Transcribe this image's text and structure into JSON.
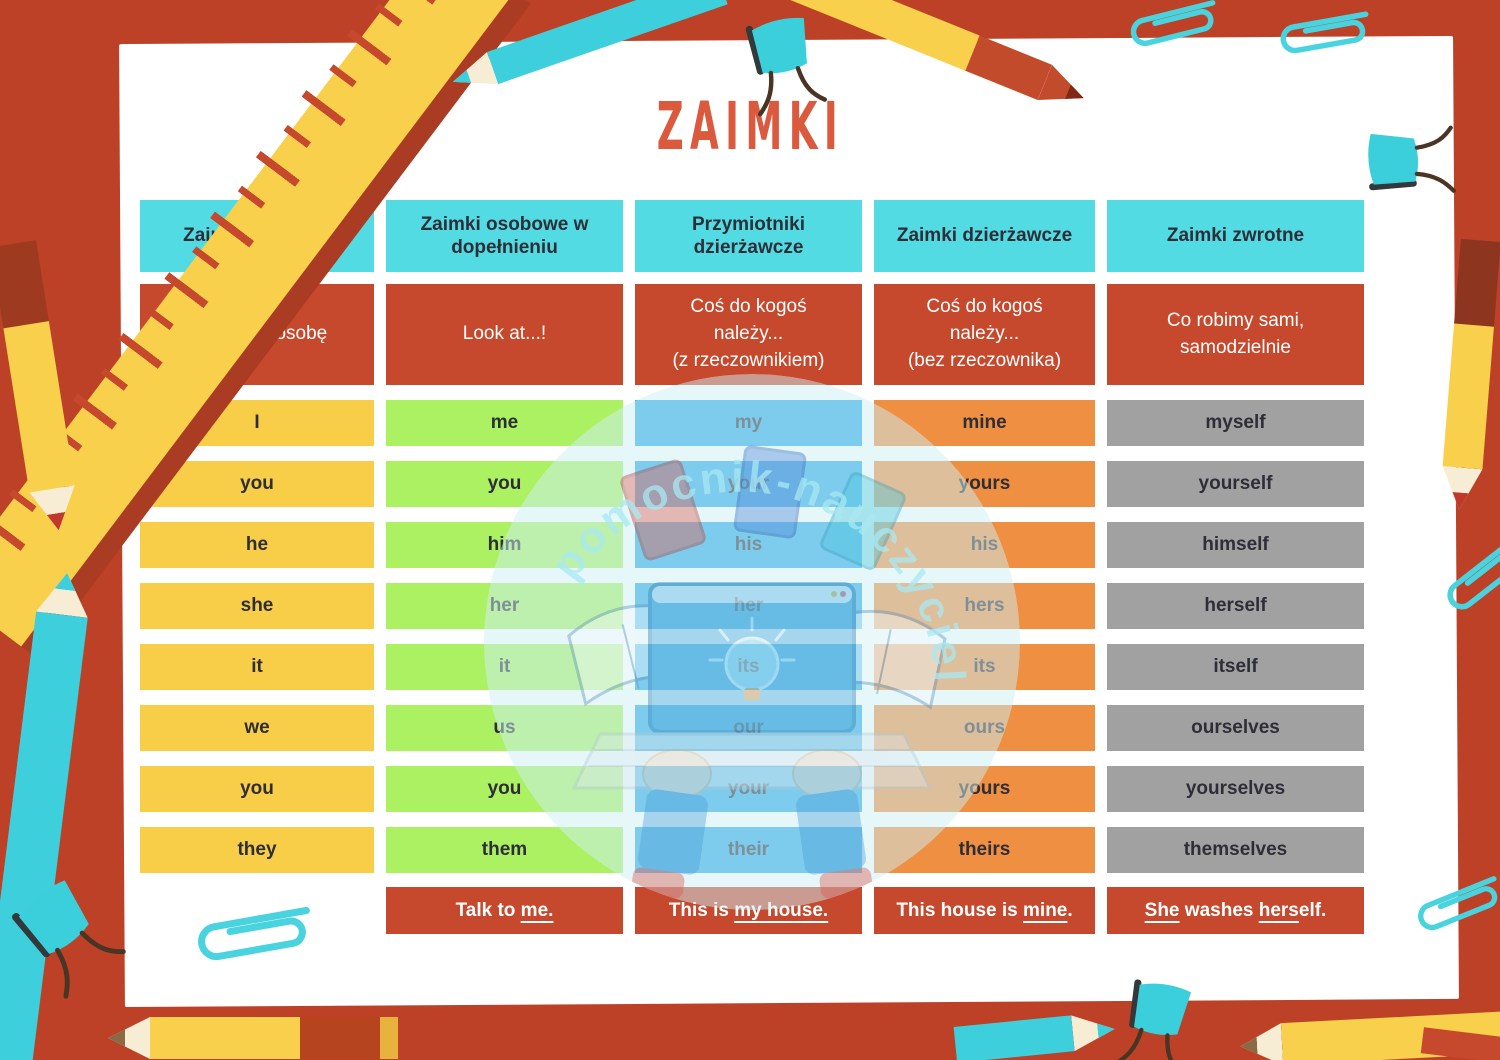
{
  "title": "ZAIMKI",
  "watermark": {
    "text": "pomocnik-nauczyciela"
  },
  "colors": {
    "frame_red": "#BC4127",
    "cell_red": "#C7492D",
    "header_cyan": "#52DBE3",
    "yellow": "#F8CE48",
    "green": "#ACF162",
    "blue": "#2CA8E6",
    "orange": "#EF8F41",
    "gray": "#A1A1A1",
    "dark_text": "#2E2E38",
    "title_red": "#DB5A3E"
  },
  "table": {
    "columns": [
      {
        "id": "personal",
        "header": "Zaimki osobowe",
        "description": "Zastępują osobę",
        "cell_color": "#F8CE48",
        "cells": [
          "I",
          "you",
          "he",
          "she",
          "it",
          "we",
          "you",
          "they"
        ],
        "example": null
      },
      {
        "id": "object",
        "header": "Zaimki osobowe w dopełnieniu",
        "description": "Look at...!",
        "cell_color": "#ACF162",
        "cells": [
          "me",
          "you",
          "him",
          "her",
          "it",
          "us",
          "you",
          "them"
        ],
        "example": [
          {
            "text": "Talk to ",
            "u": false
          },
          {
            "text": "me.",
            "u": true
          }
        ]
      },
      {
        "id": "possessive-adjectives",
        "header": "Przymiotniki dzierżawcze",
        "description": "Coś do kogoś\nnależy...\n(z rzeczownikiem)",
        "cell_color": "#2CA8E6",
        "cells": [
          "my",
          "your",
          "his",
          "her",
          "its",
          "our",
          "your",
          "their"
        ],
        "example": [
          {
            "text": "This is ",
            "u": false
          },
          {
            "text": "my house.",
            "u": true
          }
        ]
      },
      {
        "id": "possessive-pronouns",
        "header": "Zaimki dzierżawcze",
        "description": "Coś do kogoś\nnależy...\n(bez rzeczownika)",
        "cell_color": "#EF8F41",
        "cells": [
          "mine",
          "yours",
          "his",
          "hers",
          "its",
          "ours",
          "yours",
          "theirs"
        ],
        "example": [
          {
            "text": "This house is ",
            "u": false
          },
          {
            "text": "mine",
            "u": true
          },
          {
            "text": ".",
            "u": false
          }
        ]
      },
      {
        "id": "reflexive",
        "header": "Zaimki zwrotne",
        "description": "Co robimy sami,\nsamodzielnie",
        "cell_color": "#A1A1A1",
        "cells": [
          "myself",
          "yourself",
          "himself",
          "herself",
          "itself",
          "ourselves",
          "yourselves",
          "themselves"
        ],
        "example": [
          {
            "text": "She",
            "u": true
          },
          {
            "text": " washes ",
            "u": false
          },
          {
            "text": "hers",
            "u": true
          },
          {
            "text": "elf.",
            "u": false
          }
        ]
      }
    ]
  }
}
